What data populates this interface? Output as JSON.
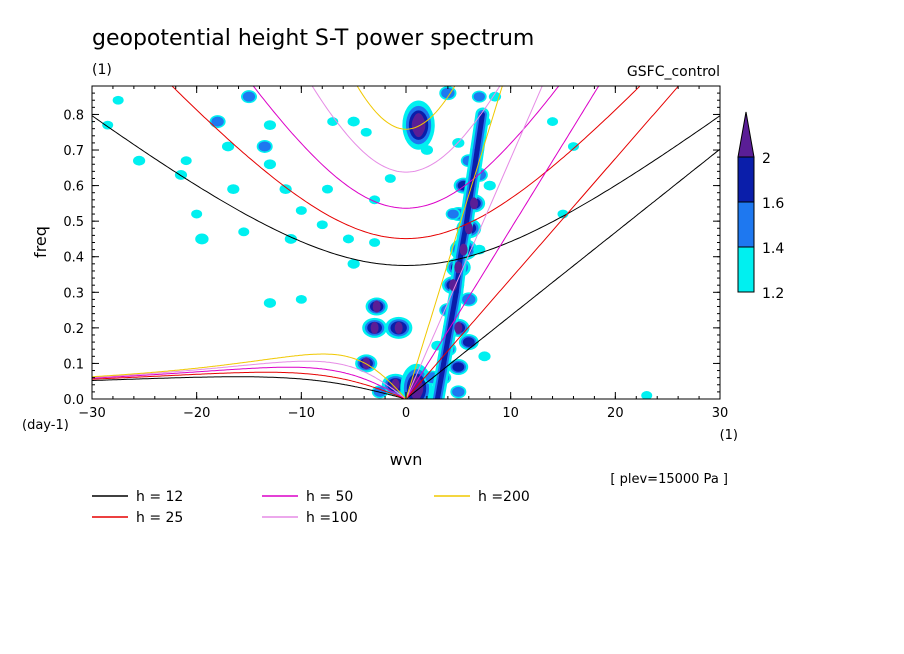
{
  "header": {
    "title": "geopotential height S-T power spectrum",
    "units": "(1)",
    "run": "GSFC_control",
    "level": "[ plev=15000 Pa ]"
  },
  "colorbar": {
    "labels": [
      "2",
      "1.6",
      "1.4",
      "1.2"
    ],
    "colors": [
      "#5a1e96",
      "#0a1eaa",
      "#1e78f0",
      "#00f0f0"
    ]
  },
  "legend": [
    {
      "label": "h = 12",
      "color": "#000000"
    },
    {
      "label": "h = 25",
      "color": "#e60000"
    },
    {
      "label": "h = 50",
      "color": "#dc00c8"
    },
    {
      "label": "h =100",
      "color": "#e68ce6"
    },
    {
      "label": "h =200",
      "color": "#f0c800"
    }
  ],
  "chart_data": {
    "type": "heatmap",
    "title": "geopotential height S-T power spectrum",
    "xlabel": "wvn",
    "ylabel": "freq",
    "x_unit": "(1)",
    "y_unit": "(day-1)",
    "xlim": [
      -30,
      30
    ],
    "ylim": [
      0,
      0.88
    ],
    "xticks": [
      "-30",
      "-20",
      "-10",
      "0",
      "10",
      "20",
      "30"
    ],
    "yticks": [
      "0.0",
      "0.1",
      "0.2",
      "0.3",
      "0.4",
      "0.5",
      "0.6",
      "0.7",
      "0.8"
    ],
    "contour_levels": [
      1.2,
      1.4,
      1.6,
      2
    ],
    "blobs": [
      {
        "x": -30.5,
        "y": 0.78,
        "v": 1.3
      },
      {
        "x": -28.5,
        "y": 0.77,
        "v": 1.25
      },
      {
        "x": -27.5,
        "y": 0.84,
        "v": 1.25
      },
      {
        "x": -25.5,
        "y": 0.67,
        "v": 1.3
      },
      {
        "x": -21.5,
        "y": 0.63,
        "v": 1.3
      },
      {
        "x": -21,
        "y": 0.67,
        "v": 1.25
      },
      {
        "x": -19.5,
        "y": 0.45,
        "v": 1.35
      },
      {
        "x": -20,
        "y": 0.52,
        "v": 1.25
      },
      {
        "x": -18,
        "y": 0.78,
        "v": 1.45
      },
      {
        "x": -17,
        "y": 0.71,
        "v": 1.3
      },
      {
        "x": -16.5,
        "y": 0.59,
        "v": 1.3
      },
      {
        "x": -15.5,
        "y": 0.47,
        "v": 1.25
      },
      {
        "x": -15,
        "y": 0.85,
        "v": 1.45
      },
      {
        "x": -13,
        "y": 0.66,
        "v": 1.3
      },
      {
        "x": -13.5,
        "y": 0.71,
        "v": 1.45
      },
      {
        "x": -13,
        "y": 0.77,
        "v": 1.3
      },
      {
        "x": -11.5,
        "y": 0.59,
        "v": 1.3
      },
      {
        "x": -11,
        "y": 0.45,
        "v": 1.3
      },
      {
        "x": -10,
        "y": 0.53,
        "v": 1.25
      },
      {
        "x": -8,
        "y": 0.49,
        "v": 1.25
      },
      {
        "x": -7.5,
        "y": 0.59,
        "v": 1.25
      },
      {
        "x": -5,
        "y": 0.78,
        "v": 1.3
      },
      {
        "x": -3,
        "y": 0.56,
        "v": 1.25
      },
      {
        "x": -5.5,
        "y": 0.45,
        "v": 1.25
      },
      {
        "x": -3,
        "y": 0.44,
        "v": 1.25
      },
      {
        "x": -13,
        "y": 0.27,
        "v": 1.3
      },
      {
        "x": -10,
        "y": 0.28,
        "v": 1.25
      },
      {
        "x": -7,
        "y": 0.78,
        "v": 1.25
      },
      {
        "x": -1.5,
        "y": 0.62,
        "v": 1.25
      },
      {
        "x": -5,
        "y": 0.38,
        "v": 1.3
      },
      {
        "x": 1.2,
        "y": 0.77,
        "v": 2.1
      },
      {
        "x": 2,
        "y": 0.7,
        "v": 1.3
      },
      {
        "x": -3.8,
        "y": 0.75,
        "v": 1.25
      },
      {
        "x": 4,
        "y": 0.86,
        "v": 1.5
      },
      {
        "x": 7,
        "y": 0.85,
        "v": 1.4
      },
      {
        "x": 7.5,
        "y": 0.78,
        "v": 1.3
      },
      {
        "x": 8.5,
        "y": 0.85,
        "v": 1.3
      },
      {
        "x": 5,
        "y": 0.72,
        "v": 1.3
      },
      {
        "x": 6,
        "y": 0.67,
        "v": 1.45
      },
      {
        "x": 7,
        "y": 0.63,
        "v": 1.5
      },
      {
        "x": 8,
        "y": 0.6,
        "v": 1.3
      },
      {
        "x": 5.5,
        "y": 0.6,
        "v": 1.6
      },
      {
        "x": 6.5,
        "y": 0.55,
        "v": 1.7
      },
      {
        "x": 5,
        "y": 0.52,
        "v": 1.5
      },
      {
        "x": 6,
        "y": 0.48,
        "v": 1.8
      },
      {
        "x": 5.5,
        "y": 0.42,
        "v": 1.9
      },
      {
        "x": 5,
        "y": 0.37,
        "v": 1.8
      },
      {
        "x": 4.5,
        "y": 0.32,
        "v": 1.7
      },
      {
        "x": 6,
        "y": 0.28,
        "v": 1.5
      },
      {
        "x": 4,
        "y": 0.25,
        "v": 1.5
      },
      {
        "x": 5,
        "y": 0.2,
        "v": 1.7
      },
      {
        "x": 6,
        "y": 0.16,
        "v": 1.6
      },
      {
        "x": 4,
        "y": 0.14,
        "v": 1.5
      },
      {
        "x": 5,
        "y": 0.09,
        "v": 1.6
      },
      {
        "x": 3.5,
        "y": 0.06,
        "v": 1.5
      },
      {
        "x": 4.5,
        "y": 0.52,
        "v": 1.4
      },
      {
        "x": 7,
        "y": 0.42,
        "v": 1.3
      },
      {
        "x": -2.8,
        "y": 0.26,
        "v": 1.7
      },
      {
        "x": -3,
        "y": 0.2,
        "v": 1.8
      },
      {
        "x": -0.7,
        "y": 0.2,
        "v": 1.9
      },
      {
        "x": -3.8,
        "y": 0.1,
        "v": 1.7
      },
      {
        "x": -1,
        "y": 0.04,
        "v": 1.9
      },
      {
        "x": 1,
        "y": 0.03,
        "v": 2.1
      },
      {
        "x": 2.5,
        "y": 0.06,
        "v": 1.5
      },
      {
        "x": -2.5,
        "y": 0.02,
        "v": 1.45
      },
      {
        "x": 3,
        "y": 0.15,
        "v": 1.3
      },
      {
        "x": 5,
        "y": 0.02,
        "v": 1.45
      },
      {
        "x": 7.5,
        "y": 0.12,
        "v": 1.3
      },
      {
        "x": 16,
        "y": 0.71,
        "v": 1.25
      },
      {
        "x": 14,
        "y": 0.78,
        "v": 1.25
      },
      {
        "x": 23,
        "y": 0.01,
        "v": 1.25
      },
      {
        "x": 15,
        "y": 0.52,
        "v": 1.25
      }
    ],
    "dispersion_curves": [
      {
        "name": "h = 12",
        "equivalent_depth_m": 12
      },
      {
        "name": "h = 25",
        "equivalent_depth_m": 25
      },
      {
        "name": "h = 50",
        "equivalent_depth_m": 50
      },
      {
        "name": "h =100",
        "equivalent_depth_m": 100
      },
      {
        "name": "h =200",
        "equivalent_depth_m": 200
      }
    ]
  }
}
